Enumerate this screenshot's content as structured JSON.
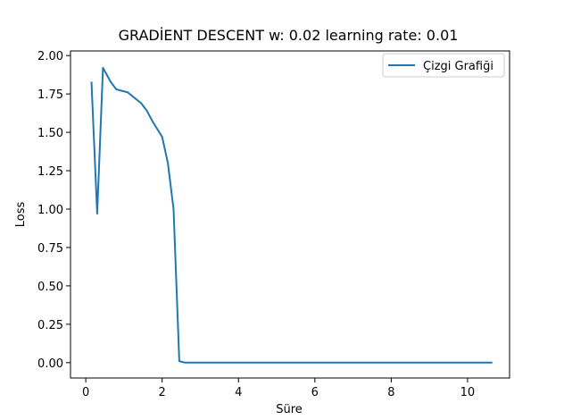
{
  "chart_data": {
    "type": "line",
    "title": "GRADİENT DESCENT w: 0.02 learning rate: 0.01",
    "xlabel": "Süre",
    "ylabel": "Loss",
    "xlim": [
      -0.4,
      11.1
    ],
    "ylim": [
      -0.1,
      2.03
    ],
    "xticks": [
      0,
      2,
      4,
      6,
      8,
      10
    ],
    "xtick_labels": [
      "0",
      "2",
      "4",
      "6",
      "8",
      "10"
    ],
    "yticks": [
      0.0,
      0.25,
      0.5,
      0.75,
      1.0,
      1.25,
      1.5,
      1.75,
      2.0
    ],
    "ytick_labels": [
      "0.00",
      "0.25",
      "0.50",
      "0.75",
      "1.00",
      "1.25",
      "1.50",
      "1.75",
      "2.00"
    ],
    "grid": false,
    "legend_position": "top-right",
    "series_color": "#1f77b4",
    "series": [
      {
        "name": "Çizgi Grafiği",
        "x": [
          0.15,
          0.3,
          0.45,
          0.65,
          0.8,
          1.1,
          1.3,
          1.45,
          1.6,
          1.75,
          1.85,
          2.0,
          2.15,
          2.3,
          2.45,
          2.6,
          2.8,
          3.2,
          4.0,
          5.0,
          6.0,
          7.0,
          8.0,
          9.0,
          10.0,
          10.65
        ],
        "values": [
          1.83,
          0.97,
          1.92,
          1.83,
          1.78,
          1.76,
          1.72,
          1.69,
          1.64,
          1.57,
          1.53,
          1.47,
          1.3,
          1.0,
          0.01,
          0.0,
          0.0,
          0.0,
          0.0,
          0.0,
          0.0,
          0.0,
          0.0,
          0.0,
          0.0,
          0.0
        ]
      }
    ]
  }
}
